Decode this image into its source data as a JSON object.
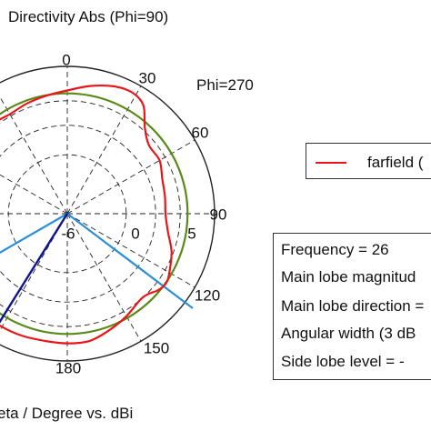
{
  "title": "Directivity Abs (Phi=90)",
  "phi_right_label": "Phi=270",
  "xlabel": "eta / Degree vs. dBi",
  "legend": {
    "label": "farfield (",
    "color": "#e8161a"
  },
  "info": [
    "Frequency = 26",
    "Main lobe magnitud",
    "Main lobe direction =",
    "Angular width (3 dB",
    "Side lobe level =   -"
  ],
  "colors": {
    "pattern": "#e8161a",
    "ring_3db": "#5a8a1a",
    "main_lobe_marker": "#10158f",
    "beamwidth_marker": "#2a8fd8",
    "grid": "#222222"
  },
  "chart_data": {
    "type": "polar",
    "angle_unit": "degree",
    "zero_direction": "top",
    "angle_ticks": [
      "0",
      "30",
      "60",
      "90",
      "120",
      "150",
      "180"
    ],
    "radial_ticks": [
      "-6",
      "0",
      "5"
    ],
    "radial_tick_values": [
      -6,
      0,
      5
    ],
    "rlim": [
      -18,
      12
    ],
    "ring_3db_value": 6.5,
    "main_lobe_direction_deg": 212,
    "beamwidth_edges_deg": [
      240,
      127
    ],
    "series": [
      {
        "theta": [
          0,
          10,
          20,
          28,
          35,
          42,
          50,
          60,
          70,
          80,
          90,
          100,
          110,
          120,
          125,
          130,
          135,
          140,
          150,
          160,
          170,
          180,
          190,
          200,
          210,
          220,
          230,
          240,
          250,
          260,
          270,
          280,
          290,
          300,
          310,
          320,
          330,
          340,
          350
        ],
        "r": [
          7.1,
          8.4,
          9.6,
          10.0,
          9.0,
          5.6,
          3.7,
          3.7,
          2.6,
          2.2,
          2.0,
          2.8,
          4.6,
          6.0,
          6.6,
          6.2,
          5.2,
          5.0,
          6.1,
          7.2,
          8.3,
          8.4,
          8.3,
          8.5,
          8.6,
          8.5,
          8.4,
          8.1,
          6.6,
          2.7,
          0.1,
          2.2,
          5.1,
          6.1,
          6.6,
          5.9,
          5.4,
          5.9,
          6.4
        ]
      }
    ]
  }
}
